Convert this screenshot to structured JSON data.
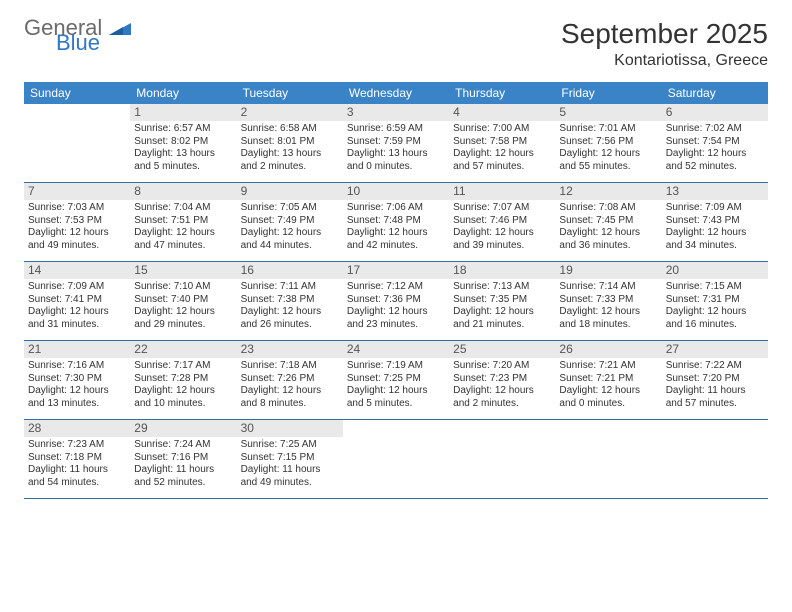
{
  "brand": {
    "general": "General",
    "blue": "Blue"
  },
  "title": "September 2025",
  "location": "Kontariotissa, Greece",
  "colors": {
    "header_bg": "#3b83c7",
    "header_text": "#ffffff",
    "week_divider": "#2f6fa8",
    "daynum_bg": "#e9e9e9",
    "daynum_text": "#555555",
    "body_text": "#333333",
    "logo_gray": "#6b6b6b",
    "logo_blue": "#2f78c2",
    "page_bg": "#ffffff"
  },
  "day_names": [
    "Sunday",
    "Monday",
    "Tuesday",
    "Wednesday",
    "Thursday",
    "Friday",
    "Saturday"
  ],
  "weeks": [
    [
      {
        "n": "",
        "lines": []
      },
      {
        "n": "1",
        "lines": [
          "Sunrise: 6:57 AM",
          "Sunset: 8:02 PM",
          "Daylight: 13 hours",
          "and 5 minutes."
        ]
      },
      {
        "n": "2",
        "lines": [
          "Sunrise: 6:58 AM",
          "Sunset: 8:01 PM",
          "Daylight: 13 hours",
          "and 2 minutes."
        ]
      },
      {
        "n": "3",
        "lines": [
          "Sunrise: 6:59 AM",
          "Sunset: 7:59 PM",
          "Daylight: 13 hours",
          "and 0 minutes."
        ]
      },
      {
        "n": "4",
        "lines": [
          "Sunrise: 7:00 AM",
          "Sunset: 7:58 PM",
          "Daylight: 12 hours",
          "and 57 minutes."
        ]
      },
      {
        "n": "5",
        "lines": [
          "Sunrise: 7:01 AM",
          "Sunset: 7:56 PM",
          "Daylight: 12 hours",
          "and 55 minutes."
        ]
      },
      {
        "n": "6",
        "lines": [
          "Sunrise: 7:02 AM",
          "Sunset: 7:54 PM",
          "Daylight: 12 hours",
          "and 52 minutes."
        ]
      }
    ],
    [
      {
        "n": "7",
        "lines": [
          "Sunrise: 7:03 AM",
          "Sunset: 7:53 PM",
          "Daylight: 12 hours",
          "and 49 minutes."
        ]
      },
      {
        "n": "8",
        "lines": [
          "Sunrise: 7:04 AM",
          "Sunset: 7:51 PM",
          "Daylight: 12 hours",
          "and 47 minutes."
        ]
      },
      {
        "n": "9",
        "lines": [
          "Sunrise: 7:05 AM",
          "Sunset: 7:49 PM",
          "Daylight: 12 hours",
          "and 44 minutes."
        ]
      },
      {
        "n": "10",
        "lines": [
          "Sunrise: 7:06 AM",
          "Sunset: 7:48 PM",
          "Daylight: 12 hours",
          "and 42 minutes."
        ]
      },
      {
        "n": "11",
        "lines": [
          "Sunrise: 7:07 AM",
          "Sunset: 7:46 PM",
          "Daylight: 12 hours",
          "and 39 minutes."
        ]
      },
      {
        "n": "12",
        "lines": [
          "Sunrise: 7:08 AM",
          "Sunset: 7:45 PM",
          "Daylight: 12 hours",
          "and 36 minutes."
        ]
      },
      {
        "n": "13",
        "lines": [
          "Sunrise: 7:09 AM",
          "Sunset: 7:43 PM",
          "Daylight: 12 hours",
          "and 34 minutes."
        ]
      }
    ],
    [
      {
        "n": "14",
        "lines": [
          "Sunrise: 7:09 AM",
          "Sunset: 7:41 PM",
          "Daylight: 12 hours",
          "and 31 minutes."
        ]
      },
      {
        "n": "15",
        "lines": [
          "Sunrise: 7:10 AM",
          "Sunset: 7:40 PM",
          "Daylight: 12 hours",
          "and 29 minutes."
        ]
      },
      {
        "n": "16",
        "lines": [
          "Sunrise: 7:11 AM",
          "Sunset: 7:38 PM",
          "Daylight: 12 hours",
          "and 26 minutes."
        ]
      },
      {
        "n": "17",
        "lines": [
          "Sunrise: 7:12 AM",
          "Sunset: 7:36 PM",
          "Daylight: 12 hours",
          "and 23 minutes."
        ]
      },
      {
        "n": "18",
        "lines": [
          "Sunrise: 7:13 AM",
          "Sunset: 7:35 PM",
          "Daylight: 12 hours",
          "and 21 minutes."
        ]
      },
      {
        "n": "19",
        "lines": [
          "Sunrise: 7:14 AM",
          "Sunset: 7:33 PM",
          "Daylight: 12 hours",
          "and 18 minutes."
        ]
      },
      {
        "n": "20",
        "lines": [
          "Sunrise: 7:15 AM",
          "Sunset: 7:31 PM",
          "Daylight: 12 hours",
          "and 16 minutes."
        ]
      }
    ],
    [
      {
        "n": "21",
        "lines": [
          "Sunrise: 7:16 AM",
          "Sunset: 7:30 PM",
          "Daylight: 12 hours",
          "and 13 minutes."
        ]
      },
      {
        "n": "22",
        "lines": [
          "Sunrise: 7:17 AM",
          "Sunset: 7:28 PM",
          "Daylight: 12 hours",
          "and 10 minutes."
        ]
      },
      {
        "n": "23",
        "lines": [
          "Sunrise: 7:18 AM",
          "Sunset: 7:26 PM",
          "Daylight: 12 hours",
          "and 8 minutes."
        ]
      },
      {
        "n": "24",
        "lines": [
          "Sunrise: 7:19 AM",
          "Sunset: 7:25 PM",
          "Daylight: 12 hours",
          "and 5 minutes."
        ]
      },
      {
        "n": "25",
        "lines": [
          "Sunrise: 7:20 AM",
          "Sunset: 7:23 PM",
          "Daylight: 12 hours",
          "and 2 minutes."
        ]
      },
      {
        "n": "26",
        "lines": [
          "Sunrise: 7:21 AM",
          "Sunset: 7:21 PM",
          "Daylight: 12 hours",
          "and 0 minutes."
        ]
      },
      {
        "n": "27",
        "lines": [
          "Sunrise: 7:22 AM",
          "Sunset: 7:20 PM",
          "Daylight: 11 hours",
          "and 57 minutes."
        ]
      }
    ],
    [
      {
        "n": "28",
        "lines": [
          "Sunrise: 7:23 AM",
          "Sunset: 7:18 PM",
          "Daylight: 11 hours",
          "and 54 minutes."
        ]
      },
      {
        "n": "29",
        "lines": [
          "Sunrise: 7:24 AM",
          "Sunset: 7:16 PM",
          "Daylight: 11 hours",
          "and 52 minutes."
        ]
      },
      {
        "n": "30",
        "lines": [
          "Sunrise: 7:25 AM",
          "Sunset: 7:15 PM",
          "Daylight: 11 hours",
          "and 49 minutes."
        ]
      },
      {
        "n": "",
        "lines": []
      },
      {
        "n": "",
        "lines": []
      },
      {
        "n": "",
        "lines": []
      },
      {
        "n": "",
        "lines": []
      }
    ]
  ]
}
